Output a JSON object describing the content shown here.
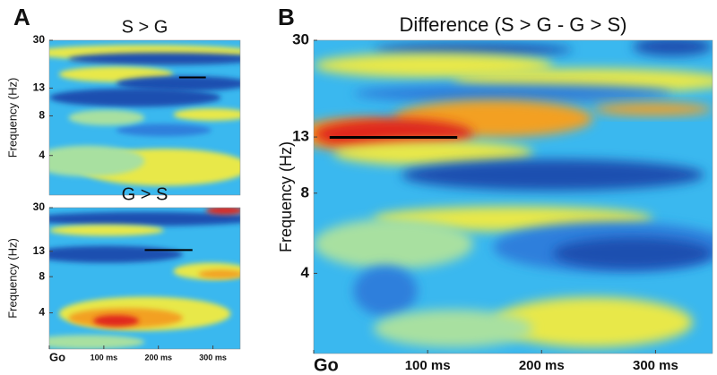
{
  "chart_data": [
    {
      "type": "heatmap",
      "panel": "A",
      "title": "S > G",
      "ylabel": "Frequency (Hz)",
      "yscale": "log",
      "ylim": [
        2,
        30
      ],
      "yticks": [
        30,
        13,
        8,
        4
      ],
      "colormap": "jet"
    },
    {
      "type": "heatmap",
      "title": "G > S",
      "ylabel": "Frequency (Hz)",
      "yscale": "log",
      "ylim": [
        2,
        30
      ],
      "yticks": [
        30,
        13,
        8,
        4
      ],
      "xlim": [
        0,
        350
      ],
      "xticks": [
        {
          "value": 0,
          "label": "Go"
        },
        {
          "value": 100,
          "label": "100 ms"
        },
        {
          "value": 200,
          "label": "200 ms"
        },
        {
          "value": 300,
          "label": "300 ms"
        }
      ],
      "colormap": "jet"
    },
    {
      "type": "heatmap",
      "panel": "B",
      "title": "Difference (S > G - G > S)",
      "ylabel": "Frequency (Hz)",
      "yscale": "log",
      "ylim": [
        2,
        30
      ],
      "yticks": [
        30,
        13,
        8,
        4
      ],
      "xlim": [
        0,
        350
      ],
      "xticks": [
        {
          "value": 0,
          "label": "Go"
        },
        {
          "value": 100,
          "label": "100 ms"
        },
        {
          "value": 200,
          "label": "200 ms"
        },
        {
          "value": 300,
          "label": "300 ms"
        }
      ],
      "colormap": "jet"
    }
  ]
}
